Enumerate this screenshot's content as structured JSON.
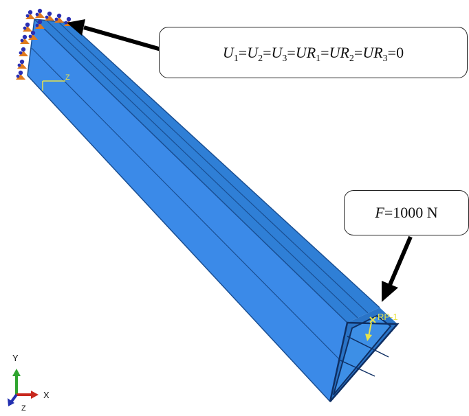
{
  "boundary_condition": {
    "parts": [
      {
        "var": "U",
        "sub": "1"
      },
      {
        "var": "U",
        "sub": "2"
      },
      {
        "var": "U",
        "sub": "3"
      },
      {
        "var": "UR",
        "sub": "1"
      },
      {
        "var": "UR",
        "sub": "2"
      },
      {
        "var": "UR",
        "sub": "3"
      }
    ],
    "equals": "=",
    "value": "0"
  },
  "load": {
    "symbol": "F",
    "equals": "=",
    "value": "1000 N"
  },
  "reference_point": {
    "label": "RP-1"
  },
  "fixed_end_csys": {
    "z_label": "Z"
  },
  "triad": {
    "x_label": "X",
    "y_label": "Y",
    "z_label": "Z"
  },
  "colors": {
    "beam_top": "#2f7fd6",
    "beam_side": "#3b8ae8",
    "beam_edge": "#1a4f93",
    "outline": "#0f2f63",
    "annotation": "#e8e34a",
    "bc_symbol": "#e07a1e",
    "bc_node": "#2a2fb3",
    "arrow": "#000000",
    "axis_x": "#c8281e",
    "axis_y": "#2fa52f",
    "axis_z": "#2330b0"
  }
}
